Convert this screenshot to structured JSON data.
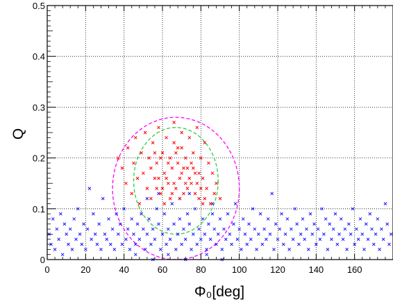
{
  "chart_data": {
    "type": "scatter",
    "title": "",
    "xlabel": "Φ₀[deg]",
    "ylabel": "Q",
    "xlim": [
      0,
      180
    ],
    "ylim": [
      0,
      0.5
    ],
    "grid": true,
    "x_ticks": [
      0,
      20,
      40,
      60,
      80,
      100,
      120,
      140,
      160
    ],
    "x_tick_labels": [
      "0",
      "20",
      "40",
      "60",
      "80",
      "100",
      "120",
      "140",
      "160"
    ],
    "y_ticks": [
      0,
      0.1,
      0.2,
      0.3,
      0.4,
      0.5
    ],
    "y_tick_labels": [
      "0",
      "0.1",
      "0.2",
      "0.3",
      "0.4",
      "0.5"
    ],
    "marker": "x",
    "series": [
      {
        "color": "#1a1aff",
        "values": [
          [
            1,
            0.05
          ],
          [
            2,
            0.03
          ],
          [
            3,
            0.08
          ],
          [
            4,
            0.02
          ],
          [
            5,
            0.06
          ],
          [
            6,
            0.04
          ],
          [
            7,
            0.09
          ],
          [
            8,
            0.01
          ],
          [
            9,
            0.07
          ],
          [
            10,
            0.05
          ],
          [
            11,
            0.03
          ],
          [
            12,
            0.06
          ],
          [
            13,
            0.02
          ],
          [
            14,
            0.08
          ],
          [
            15,
            0.04
          ],
          [
            16,
            0.1
          ],
          [
            17,
            0.05
          ],
          [
            18,
            0.03
          ],
          [
            19,
            0.07
          ],
          [
            20,
            0.02
          ],
          [
            21,
            0.06
          ],
          [
            22,
            0.14
          ],
          [
            23,
            0.04
          ],
          [
            24,
            0.09
          ],
          [
            25,
            0.05
          ],
          [
            26,
            0.03
          ],
          [
            27,
            0.07
          ],
          [
            28,
            0.02
          ],
          [
            29,
            0.12
          ],
          [
            30,
            0.05
          ],
          [
            31,
            0.04
          ],
          [
            32,
            0.08
          ],
          [
            33,
            0.03
          ],
          [
            34,
            0.06
          ],
          [
            35,
            0.02
          ],
          [
            36,
            0.09
          ],
          [
            37,
            0.05
          ],
          [
            38,
            0.07
          ],
          [
            39,
            0.03
          ],
          [
            40,
            0.1
          ],
          [
            41,
            0.04
          ],
          [
            42,
            0.06
          ],
          [
            43,
            0.02
          ],
          [
            44,
            0.08
          ],
          [
            45,
            0.05
          ],
          [
            46,
            0.03
          ],
          [
            47,
            0.07
          ],
          [
            48,
            0.04
          ],
          [
            49,
            0.09
          ],
          [
            50,
            0.06
          ],
          [
            51,
            0.02
          ],
          [
            52,
            0.05
          ],
          [
            53,
            0.08
          ],
          [
            54,
            0.03
          ],
          [
            55,
            0.06
          ],
          [
            56,
            0.04
          ],
          [
            57,
            0.1
          ],
          [
            58,
            0.07
          ],
          [
            59,
            0.02
          ],
          [
            60,
            0.05
          ],
          [
            61,
            0.09
          ],
          [
            62,
            0.03
          ],
          [
            63,
            0.06
          ],
          [
            64,
            0.04
          ],
          [
            65,
            0.11
          ],
          [
            66,
            0.07
          ],
          [
            67,
            0.02
          ],
          [
            68,
            0.05
          ],
          [
            69,
            0.08
          ],
          [
            70,
            0.03
          ],
          [
            71,
            0.06
          ],
          [
            72,
            0.04
          ],
          [
            73,
            0.09
          ],
          [
            74,
            0.07
          ],
          [
            75,
            0.02
          ],
          [
            76,
            0.05
          ],
          [
            77,
            0.1
          ],
          [
            78,
            0.03
          ],
          [
            79,
            0.06
          ],
          [
            80,
            0.04
          ],
          [
            81,
            0.08
          ],
          [
            82,
            0.05
          ],
          [
            83,
            0.02
          ],
          [
            84,
            0.07
          ],
          [
            85,
            0.04
          ],
          [
            86,
            0.09
          ],
          [
            87,
            0.06
          ],
          [
            88,
            0.03
          ],
          [
            89,
            0.05
          ],
          [
            90,
            0.08
          ],
          [
            91,
            0.02
          ],
          [
            92,
            0.06
          ],
          [
            93,
            0.04
          ],
          [
            94,
            0.09
          ],
          [
            95,
            0.05
          ],
          [
            96,
            0.03
          ],
          [
            97,
            0.07
          ],
          [
            98,
            0.11
          ],
          [
            99,
            0.04
          ],
          [
            100,
            0.06
          ],
          [
            101,
            0.02
          ],
          [
            102,
            0.08
          ],
          [
            103,
            0.05
          ],
          [
            104,
            0.03
          ],
          [
            105,
            0.07
          ],
          [
            106,
            0.04
          ],
          [
            107,
            0.1
          ],
          [
            108,
            0.06
          ],
          [
            109,
            0.02
          ],
          [
            110,
            0.05
          ],
          [
            111,
            0.09
          ],
          [
            112,
            0.03
          ],
          [
            113,
            0.06
          ],
          [
            114,
            0.04
          ],
          [
            115,
            0.08
          ],
          [
            116,
            0.05
          ],
          [
            117,
            0.13
          ],
          [
            118,
            0.02
          ],
          [
            119,
            0.07
          ],
          [
            120,
            0.04
          ],
          [
            121,
            0.06
          ],
          [
            122,
            0.09
          ],
          [
            123,
            0.03
          ],
          [
            124,
            0.05
          ],
          [
            125,
            0.08
          ],
          [
            126,
            0.02
          ],
          [
            127,
            0.06
          ],
          [
            128,
            0.04
          ],
          [
            129,
            0.1
          ],
          [
            130,
            0.07
          ],
          [
            131,
            0.03
          ],
          [
            132,
            0.05
          ],
          [
            133,
            0.08
          ],
          [
            134,
            0.04
          ],
          [
            135,
            0.06
          ],
          [
            136,
            0.02
          ],
          [
            137,
            0.09
          ],
          [
            138,
            0.05
          ],
          [
            139,
            0.07
          ],
          [
            140,
            0.03
          ],
          [
            141,
            0.06
          ],
          [
            142,
            0.04
          ],
          [
            143,
            0.1
          ],
          [
            144,
            0.05
          ],
          [
            145,
            0.08
          ],
          [
            146,
            0.02
          ],
          [
            147,
            0.07
          ],
          [
            148,
            0.04
          ],
          [
            149,
            0.06
          ],
          [
            150,
            0.09
          ],
          [
            151,
            0.03
          ],
          [
            152,
            0.05
          ],
          [
            153,
            0.08
          ],
          [
            154,
            0.04
          ],
          [
            155,
            0.06
          ],
          [
            156,
            0.02
          ],
          [
            157,
            0.07
          ],
          [
            158,
            0.05
          ],
          [
            159,
            0.1
          ],
          [
            160,
            0.03
          ],
          [
            161,
            0.06
          ],
          [
            162,
            0.04
          ],
          [
            163,
            0.08
          ],
          [
            164,
            0.05
          ],
          [
            165,
            0.02
          ],
          [
            166,
            0.07
          ],
          [
            167,
            0.04
          ],
          [
            168,
            0.09
          ],
          [
            169,
            0.06
          ],
          [
            170,
            0.03
          ],
          [
            171,
            0.05
          ],
          [
            172,
            0.08
          ],
          [
            173,
            0.02
          ],
          [
            174,
            0.06
          ],
          [
            175,
            0.04
          ],
          [
            176,
            0.11
          ],
          [
            177,
            0.07
          ],
          [
            178,
            0.03
          ],
          [
            179,
            0.05
          ],
          [
            46,
            0.01
          ],
          [
            55,
            0.0
          ],
          [
            63,
            0.01
          ],
          [
            72,
            0.0
          ],
          [
            83,
            0.01
          ],
          [
            91,
            0.0
          ],
          [
            52,
            0.12
          ],
          [
            58,
            0.13
          ],
          [
            69,
            0.12
          ],
          [
            74,
            0.13
          ],
          [
            86,
            0.11
          ]
        ]
      },
      {
        "color": "#ff0000",
        "values": [
          [
            37,
            0.2
          ],
          [
            39,
            0.18
          ],
          [
            41,
            0.15
          ],
          [
            42,
            0.22
          ],
          [
            44,
            0.13
          ],
          [
            45,
            0.19
          ],
          [
            46,
            0.24
          ],
          [
            47,
            0.16
          ],
          [
            48,
            0.11
          ],
          [
            49,
            0.21
          ],
          [
            50,
            0.17
          ],
          [
            51,
            0.25
          ],
          [
            52,
            0.14
          ],
          [
            53,
            0.2
          ],
          [
            54,
            0.12
          ],
          [
            55,
            0.23
          ],
          [
            56,
            0.16
          ],
          [
            57,
            0.19
          ],
          [
            58,
            0.26
          ],
          [
            59,
            0.13
          ],
          [
            60,
            0.21
          ],
          [
            61,
            0.17
          ],
          [
            62,
            0.24
          ],
          [
            63,
            0.15
          ],
          [
            64,
            0.2
          ],
          [
            65,
            0.18
          ],
          [
            66,
            0.27
          ],
          [
            67,
            0.14
          ],
          [
            68,
            0.22
          ],
          [
            69,
            0.16
          ],
          [
            70,
            0.25
          ],
          [
            71,
            0.13
          ],
          [
            72,
            0.2
          ],
          [
            73,
            0.18
          ],
          [
            74,
            0.24
          ],
          [
            75,
            0.15
          ],
          [
            76,
            0.21
          ],
          [
            77,
            0.17
          ],
          [
            78,
            0.26
          ],
          [
            79,
            0.12
          ],
          [
            80,
            0.2
          ],
          [
            81,
            0.16
          ],
          [
            82,
            0.23
          ],
          [
            83,
            0.14
          ],
          [
            84,
            0.19
          ],
          [
            85,
            0.11
          ],
          [
            86,
            0.17
          ],
          [
            87,
            0.13
          ],
          [
            88,
            0.15
          ],
          [
            90,
            0.12
          ],
          [
            54,
            0.18
          ],
          [
            57,
            0.14
          ],
          [
            59,
            0.2
          ],
          [
            61,
            0.11
          ],
          [
            63,
            0.19
          ],
          [
            65,
            0.13
          ],
          [
            67,
            0.21
          ],
          [
            69,
            0.12
          ],
          [
            71,
            0.18
          ],
          [
            73,
            0.14
          ],
          [
            75,
            0.19
          ],
          [
            77,
            0.13
          ],
          [
            79,
            0.17
          ],
          [
            81,
            0.11
          ],
          [
            62,
            0.16
          ],
          [
            66,
            0.15
          ],
          [
            70,
            0.17
          ],
          [
            74,
            0.16
          ],
          [
            78,
            0.15
          ],
          [
            64,
            0.12
          ],
          [
            68,
            0.19
          ],
          [
            72,
            0.15
          ],
          [
            76,
            0.18
          ],
          [
            60,
            0.14
          ],
          [
            58,
            0.16
          ],
          [
            56,
            0.21
          ],
          [
            80,
            0.14
          ],
          [
            82,
            0.12
          ],
          [
            66,
            0.23
          ],
          [
            70,
            0.22
          ]
        ]
      }
    ],
    "contours": [
      {
        "color": "#2ecc40",
        "style": "dashed",
        "center": [
          67,
          0.155
        ],
        "semi_axes": [
          22,
          0.105
        ]
      },
      {
        "color": "#ff00ff",
        "style": "dashed",
        "center": [
          67,
          0.14
        ],
        "semi_axes": [
          33,
          0.14
        ]
      }
    ]
  }
}
